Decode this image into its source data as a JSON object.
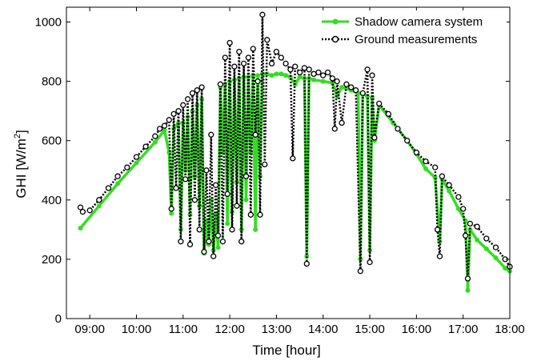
{
  "chart_data": {
    "type": "line",
    "xlabel": "Time [hour]",
    "ylabel_main": "GHI [W/m",
    "ylabel_sup": "2",
    "ylabel_end": "]",
    "xlim": [
      8.5,
      18.0
    ],
    "ylim": [
      0,
      1050
    ],
    "x_ticks": [
      {
        "value": 9,
        "label": "09:00"
      },
      {
        "value": 10,
        "label": "10:00"
      },
      {
        "value": 11,
        "label": "11:00"
      },
      {
        "value": 12,
        "label": "12:00"
      },
      {
        "value": 13,
        "label": "13:00"
      },
      {
        "value": 14,
        "label": "14:00"
      },
      {
        "value": 15,
        "label": "15:00"
      },
      {
        "value": 16,
        "label": "16:00"
      },
      {
        "value": 17,
        "label": "17:00"
      },
      {
        "value": 18,
        "label": "18:00"
      }
    ],
    "y_ticks": [
      {
        "value": 0,
        "label": "0"
      },
      {
        "value": 200,
        "label": "200"
      },
      {
        "value": 400,
        "label": "400"
      },
      {
        "value": 600,
        "label": "600"
      },
      {
        "value": 800,
        "label": "800"
      },
      {
        "value": 1000,
        "label": "1000"
      }
    ],
    "grid": false,
    "legend_position": "top-right",
    "series": [
      {
        "name": "Shadow camera system",
        "color": "#33dd22",
        "style": "solid-with-filled-dots",
        "points": [
          [
            8.8,
            305
          ],
          [
            9.2,
            380
          ],
          [
            9.6,
            455
          ],
          [
            10.0,
            525
          ],
          [
            10.4,
            595
          ],
          [
            10.6,
            635
          ],
          [
            10.7,
            560
          ],
          [
            10.75,
            355
          ],
          [
            10.8,
            640
          ],
          [
            10.9,
            660
          ],
          [
            10.95,
            300
          ],
          [
            11.0,
            660
          ],
          [
            11.05,
            500
          ],
          [
            11.1,
            680
          ],
          [
            11.15,
            350
          ],
          [
            11.2,
            700
          ],
          [
            11.25,
            480
          ],
          [
            11.3,
            720
          ],
          [
            11.35,
            380
          ],
          [
            11.4,
            740
          ],
          [
            11.45,
            220
          ],
          [
            11.5,
            330
          ],
          [
            11.55,
            250
          ],
          [
            11.6,
            400
          ],
          [
            11.65,
            230
          ],
          [
            11.7,
            350
          ],
          [
            11.75,
            240
          ],
          [
            11.8,
            780
          ],
          [
            11.85,
            560
          ],
          [
            11.9,
            790
          ],
          [
            11.95,
            320
          ],
          [
            12.0,
            800
          ],
          [
            12.05,
            360
          ],
          [
            12.1,
            805
          ],
          [
            12.15,
            460
          ],
          [
            12.2,
            810
          ],
          [
            12.25,
            300
          ],
          [
            12.3,
            815
          ],
          [
            12.35,
            400
          ],
          [
            12.4,
            815
          ],
          [
            12.45,
            560
          ],
          [
            12.5,
            820
          ],
          [
            12.55,
            300
          ],
          [
            12.6,
            820
          ],
          [
            12.65,
            480
          ],
          [
            12.7,
            825
          ],
          [
            12.8,
            825
          ],
          [
            12.9,
            820
          ],
          [
            13.0,
            825
          ],
          [
            13.1,
            825
          ],
          [
            13.2,
            820
          ],
          [
            13.3,
            815
          ],
          [
            13.4,
            790
          ],
          [
            13.5,
            815
          ],
          [
            13.6,
            810
          ],
          [
            13.65,
            210
          ],
          [
            13.7,
            810
          ],
          [
            13.8,
            805
          ],
          [
            14.0,
            800
          ],
          [
            14.2,
            795
          ],
          [
            14.3,
            750
          ],
          [
            14.4,
            780
          ],
          [
            14.6,
            770
          ],
          [
            14.75,
            760
          ],
          [
            14.8,
            200
          ],
          [
            14.85,
            760
          ],
          [
            14.95,
            750
          ],
          [
            15.0,
            230
          ],
          [
            15.05,
            745
          ],
          [
            15.1,
            600
          ],
          [
            15.2,
            720
          ],
          [
            15.5,
            660
          ],
          [
            15.8,
            600
          ],
          [
            16.0,
            555
          ],
          [
            16.2,
            505
          ],
          [
            16.4,
            475
          ],
          [
            16.5,
            260
          ],
          [
            16.55,
            470
          ],
          [
            16.7,
            430
          ],
          [
            16.9,
            370
          ],
          [
            17.05,
            330
          ],
          [
            17.1,
            95
          ],
          [
            17.15,
            300
          ],
          [
            17.3,
            265
          ],
          [
            17.5,
            235
          ],
          [
            17.7,
            205
          ],
          [
            17.9,
            170
          ],
          [
            18.0,
            160
          ]
        ]
      },
      {
        "name": "Ground measurements",
        "color": "#000000",
        "style": "dotted-with-open-circles",
        "points": [
          [
            8.8,
            375
          ],
          [
            8.85,
            360
          ],
          [
            9.0,
            365
          ],
          [
            9.2,
            400
          ],
          [
            9.4,
            440
          ],
          [
            9.6,
            480
          ],
          [
            9.8,
            510
          ],
          [
            10.0,
            545
          ],
          [
            10.2,
            580
          ],
          [
            10.4,
            615
          ],
          [
            10.5,
            640
          ],
          [
            10.6,
            650
          ],
          [
            10.7,
            670
          ],
          [
            10.75,
            370
          ],
          [
            10.8,
            690
          ],
          [
            10.85,
            440
          ],
          [
            10.9,
            700
          ],
          [
            10.95,
            260
          ],
          [
            11.0,
            720
          ],
          [
            11.05,
            470
          ],
          [
            11.1,
            740
          ],
          [
            11.15,
            250
          ],
          [
            11.2,
            760
          ],
          [
            11.25,
            400
          ],
          [
            11.3,
            770
          ],
          [
            11.35,
            300
          ],
          [
            11.4,
            780
          ],
          [
            11.45,
            225
          ],
          [
            11.5,
            500
          ],
          [
            11.55,
            260
          ],
          [
            11.6,
            620
          ],
          [
            11.65,
            210
          ],
          [
            11.7,
            450
          ],
          [
            11.75,
            280
          ],
          [
            11.8,
            790
          ],
          [
            11.85,
            260
          ],
          [
            11.9,
            880
          ],
          [
            11.95,
            420
          ],
          [
            12.0,
            930
          ],
          [
            12.05,
            300
          ],
          [
            12.1,
            850
          ],
          [
            12.15,
            380
          ],
          [
            12.2,
            900
          ],
          [
            12.25,
            260
          ],
          [
            12.3,
            860
          ],
          [
            12.35,
            480
          ],
          [
            12.4,
            880
          ],
          [
            12.45,
            350
          ],
          [
            12.5,
            910
          ],
          [
            12.55,
            620
          ],
          [
            12.6,
            800
          ],
          [
            12.65,
            350
          ],
          [
            12.7,
            1025
          ],
          [
            12.75,
            520
          ],
          [
            12.8,
            940
          ],
          [
            12.9,
            860
          ],
          [
            13.0,
            900
          ],
          [
            13.1,
            880
          ],
          [
            13.2,
            860
          ],
          [
            13.3,
            840
          ],
          [
            13.35,
            540
          ],
          [
            13.4,
            850
          ],
          [
            13.5,
            830
          ],
          [
            13.6,
            845
          ],
          [
            13.65,
            185
          ],
          [
            13.7,
            840
          ],
          [
            13.8,
            825
          ],
          [
            13.9,
            830
          ],
          [
            14.0,
            820
          ],
          [
            14.1,
            830
          ],
          [
            14.2,
            810
          ],
          [
            14.25,
            640
          ],
          [
            14.3,
            800
          ],
          [
            14.4,
            660
          ],
          [
            14.5,
            790
          ],
          [
            14.6,
            780
          ],
          [
            14.7,
            770
          ],
          [
            14.8,
            160
          ],
          [
            14.85,
            760
          ],
          [
            14.95,
            840
          ],
          [
            15.0,
            190
          ],
          [
            15.05,
            820
          ],
          [
            15.1,
            610
          ],
          [
            15.2,
            725
          ],
          [
            15.4,
            690
          ],
          [
            15.6,
            640
          ],
          [
            15.8,
            600
          ],
          [
            16.0,
            560
          ],
          [
            16.2,
            530
          ],
          [
            16.4,
            510
          ],
          [
            16.45,
            300
          ],
          [
            16.5,
            210
          ],
          [
            16.55,
            480
          ],
          [
            16.7,
            450
          ],
          [
            16.9,
            410
          ],
          [
            17.0,
            370
          ],
          [
            17.05,
            280
          ],
          [
            17.1,
            135
          ],
          [
            17.15,
            320
          ],
          [
            17.3,
            310
          ],
          [
            17.5,
            270
          ],
          [
            17.7,
            240
          ],
          [
            17.9,
            200
          ],
          [
            18.0,
            175
          ]
        ]
      }
    ]
  }
}
